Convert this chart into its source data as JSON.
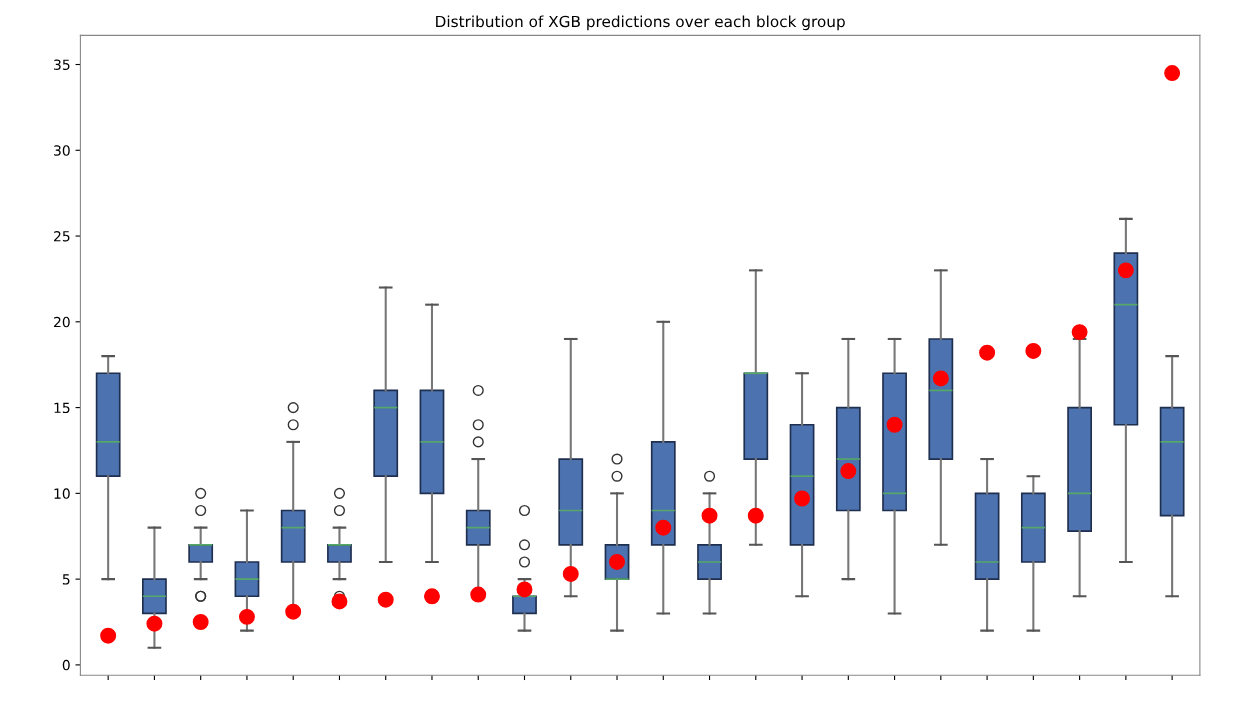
{
  "chart_data": {
    "type": "box",
    "title": "Distribution of XGB predictions over each block group",
    "categories": [
      null,
      null,
      null,
      null,
      null,
      null,
      null,
      null,
      null,
      null,
      null,
      null,
      null,
      null,
      null,
      null,
      null,
      null,
      null,
      null,
      null,
      null,
      null,
      null
    ],
    "ylim": [
      -0.6,
      36.7
    ],
    "yticks": [
      0,
      5,
      10,
      15,
      20,
      25,
      30,
      35
    ],
    "grid": false,
    "series": [
      {
        "color": "#4c72b0",
        "boxes": [
          {
            "low": 5,
            "q1": 11,
            "median": 13,
            "q3": 17,
            "high": 18
          },
          {
            "low": 1,
            "q1": 3,
            "median": 4,
            "q3": 5,
            "high": 8
          },
          {
            "low": 5,
            "q1": 6,
            "median": 7,
            "q3": 7,
            "high": 8,
            "outliers": [
              4,
              4,
              9,
              10
            ]
          },
          {
            "low": 2,
            "q1": 4,
            "median": 5,
            "q3": 6,
            "high": 9
          },
          {
            "low": 3,
            "q1": 6,
            "median": 8,
            "q3": 9,
            "high": 13,
            "outliers": [
              14,
              15
            ]
          },
          {
            "low": 5,
            "q1": 6,
            "median": 7,
            "q3": 7,
            "high": 8,
            "outliers": [
              4,
              9,
              10
            ]
          },
          {
            "low": 6,
            "q1": 11,
            "median": 15,
            "q3": 16,
            "high": 22
          },
          {
            "low": 6,
            "q1": 10,
            "median": 13,
            "q3": 16,
            "high": 21
          },
          {
            "low": 4,
            "q1": 7,
            "median": 8,
            "q3": 9,
            "high": 12,
            "outliers": [
              13,
              14,
              16
            ]
          },
          {
            "low": 2,
            "q1": 3,
            "median": 4,
            "q3": 4,
            "high": 5,
            "outliers": [
              6,
              7,
              9
            ]
          },
          {
            "low": 4,
            "q1": 7,
            "median": 9,
            "q3": 12,
            "high": 19
          },
          {
            "low": 2,
            "q1": 5,
            "median": 5,
            "q3": 7,
            "high": 10,
            "outliers": [
              11,
              12
            ]
          },
          {
            "low": 3,
            "q1": 7,
            "median": 9,
            "q3": 13,
            "high": 20
          },
          {
            "low": 3,
            "q1": 5,
            "median": 6,
            "q3": 7,
            "high": 10,
            "outliers": [
              11
            ]
          },
          {
            "low": 7,
            "q1": 12,
            "median": 17,
            "q3": 17,
            "high": 23
          },
          {
            "low": 4,
            "q1": 7,
            "median": 11,
            "q3": 14,
            "high": 17
          },
          {
            "low": 5,
            "q1": 9,
            "median": 12,
            "q3": 15,
            "high": 19
          },
          {
            "low": 3,
            "q1": 9,
            "median": 10,
            "q3": 17,
            "high": 19
          },
          {
            "low": 7,
            "q1": 12,
            "median": 16,
            "q3": 19,
            "high": 23
          },
          {
            "low": 2,
            "q1": 5,
            "median": 6,
            "q3": 10,
            "high": 12
          },
          {
            "low": 2,
            "q1": 6,
            "median": 8,
            "q3": 10,
            "high": 11
          },
          {
            "low": 4,
            "q1": 7.8,
            "median": 10,
            "q3": 15,
            "high": 19
          },
          {
            "low": 6,
            "q1": 14,
            "median": 21,
            "q3": 24,
            "high": 26
          },
          {
            "low": 4,
            "q1": 8.7,
            "median": 13,
            "q3": 15,
            "high": 18
          }
        ]
      },
      {
        "type": "scatter",
        "color": "#ff0000",
        "marker": "circle",
        "values": [
          1.7,
          2.4,
          2.5,
          2.8,
          3.1,
          3.7,
          3.8,
          4.0,
          4.1,
          4.4,
          5.3,
          6.0,
          8.0,
          8.7,
          8.7,
          9.7,
          11.3,
          14.0,
          16.7,
          18.2,
          18.3,
          19.4,
          23.0,
          34.5
        ]
      }
    ]
  }
}
